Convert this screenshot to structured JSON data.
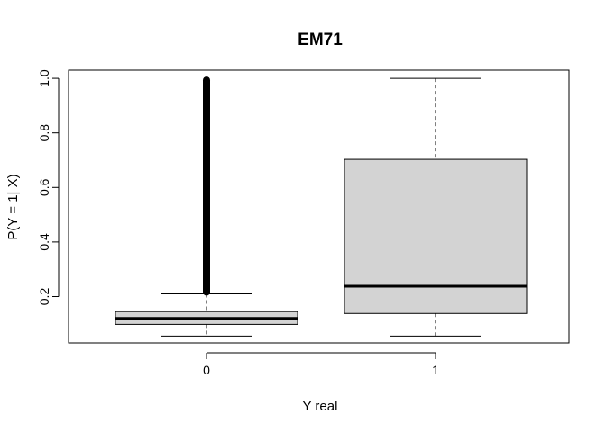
{
  "chart_data": {
    "type": "boxplot",
    "title": "EM71",
    "xlabel": "Y real",
    "ylabel": "P(Y = 1| X)",
    "ylim": [
      0.03,
      1.03
    ],
    "yticks": [
      "0.2",
      "0.4",
      "0.6",
      "0.8",
      "1.0"
    ],
    "ytick_values": [
      0.2,
      0.4,
      0.6,
      0.8,
      1.0
    ],
    "categories": [
      "0",
      "1"
    ],
    "box_color": "#d3d3d3",
    "series": [
      {
        "category": "0",
        "whisker_low": 0.055,
        "q1": 0.098,
        "median": 0.12,
        "q3": 0.145,
        "whisker_high": 0.21,
        "outliers_min": 0.21,
        "outliers_max": 1.0
      },
      {
        "category": "1",
        "whisker_low": 0.055,
        "q1": 0.138,
        "median": 0.238,
        "q3": 0.703,
        "whisker_high": 1.0
      }
    ]
  }
}
